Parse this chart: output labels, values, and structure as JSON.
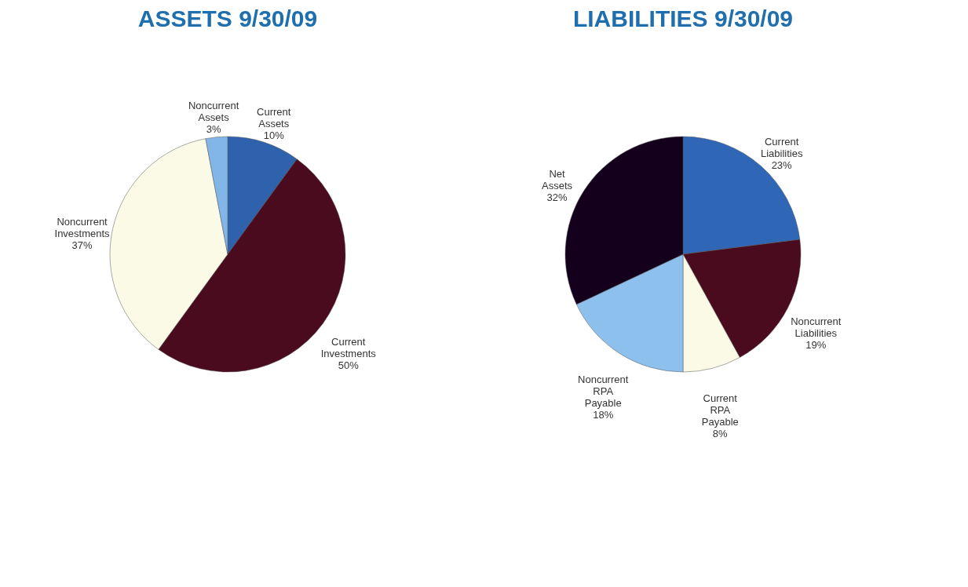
{
  "chart_data": [
    {
      "type": "pie",
      "title": "ASSETS 9/30/09",
      "categories": [
        "Current Assets",
        "Current Investments",
        "Noncurrent Investments",
        "Noncurrent Assets"
      ],
      "values": [
        10,
        50,
        37,
        3
      ],
      "value_labels": [
        "10%",
        "50%",
        "37%",
        "3%"
      ],
      "colors": [
        "#2f62ad",
        "#4a0b1f",
        "#fafae6",
        "#82b6e8"
      ]
    },
    {
      "type": "pie",
      "title": "LIABILITIES 9/30/09",
      "categories": [
        "Current Liabilities",
        "Noncurrent Liabilities",
        "Current RPA Payable",
        "Noncurrent RPA Payable",
        "Net Assets"
      ],
      "values": [
        23,
        19,
        8,
        18,
        32
      ],
      "value_labels": [
        "23%",
        "19%",
        "8%",
        "18%",
        "32%"
      ],
      "colors": [
        "#2f66b5",
        "#4a0b1f",
        "#fafae6",
        "#8ec0ee",
        "#14001c"
      ]
    }
  ]
}
